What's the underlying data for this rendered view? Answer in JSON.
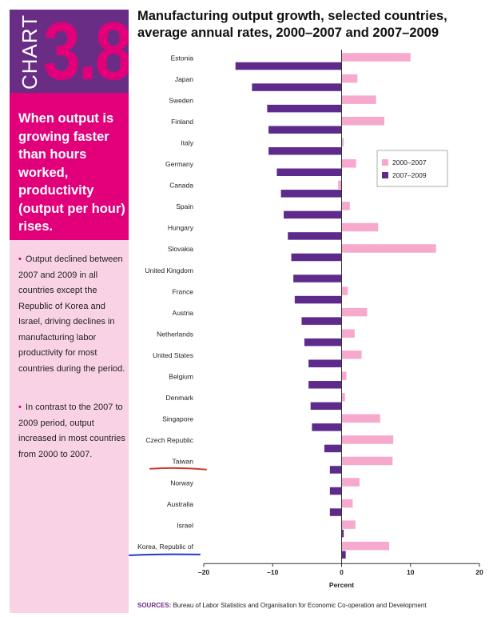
{
  "sidebar": {
    "chart_word": "CHART",
    "chart_number": "3.8",
    "headline": "When output is growing faster than hours worked, productivity (output per hour) rises.",
    "notes": [
      "Output declined between 2007 and 2009 in all countries except the Republic of Korea and Israel, driving declines in manufacturing labor productivity for most countries during the period.",
      "In contrast to the 2007 to 2009 period, output increased in most countries from 2000 to 2007."
    ],
    "bullet_symbol": "•"
  },
  "sources": {
    "label": "SOURCES:",
    "text": "Bureau of Labor Statistics and Organisation for Economic Co-operation and Development"
  },
  "colors": {
    "series_2000_2007": "#f7a8cd",
    "series_2007_2009": "#5e2b8c",
    "accent_magenta": "#e2007a",
    "accent_purple": "#6a2d85",
    "sidebar_pink": "#f9d3e5",
    "annotation_red": "#d23a2e",
    "annotation_blue": "#2438c9"
  },
  "chart_data": {
    "type": "bar",
    "orientation": "horizontal",
    "title": "Manufacturing output growth, selected countries, average annual rates, 2000–2007 and 2007–2009",
    "xlabel": "Percent",
    "ylabel": "",
    "xlim": [
      -20,
      20
    ],
    "xticks": [
      -20,
      -10,
      0,
      10,
      20
    ],
    "xtick_labels": [
      "–20",
      "–10",
      "0",
      "10",
      "20"
    ],
    "legend_position": "right",
    "grid": false,
    "categories": [
      "Estonia",
      "Japan",
      "Sweden",
      "Finland",
      "Italy",
      "Germany",
      "Canada",
      "Spain",
      "Hungary",
      "Slovakia",
      "United Kingdom",
      "France",
      "Austria",
      "Netherlands",
      "United States",
      "Belgium",
      "Denmark",
      "Singapore",
      "Czech Republic",
      "Taiwan",
      "Norway",
      "Australia",
      "Israel",
      "Korea, Republic of"
    ],
    "series": [
      {
        "name": "2000–2007",
        "values": [
          10.0,
          2.3,
          5.0,
          6.2,
          0.3,
          2.1,
          -0.5,
          1.2,
          5.3,
          13.7,
          0.0,
          0.9,
          3.7,
          1.9,
          2.9,
          0.7,
          0.5,
          5.6,
          7.5,
          7.4,
          2.6,
          1.6,
          2.0,
          6.9
        ]
      },
      {
        "name": "2007–2009",
        "values": [
          -15.4,
          -13.0,
          -10.8,
          -10.6,
          -10.6,
          -9.4,
          -8.8,
          -8.4,
          -7.8,
          -7.3,
          -7.0,
          -6.8,
          -5.8,
          -5.4,
          -4.8,
          -4.8,
          -4.5,
          -4.3,
          -2.5,
          -1.7,
          -1.7,
          -1.7,
          0.3,
          0.6
        ]
      }
    ],
    "annotations": [
      {
        "type": "underline",
        "target": "Taiwan",
        "color": "red"
      },
      {
        "type": "underline",
        "target": "Korea, Republic of",
        "color": "blue"
      }
    ]
  }
}
